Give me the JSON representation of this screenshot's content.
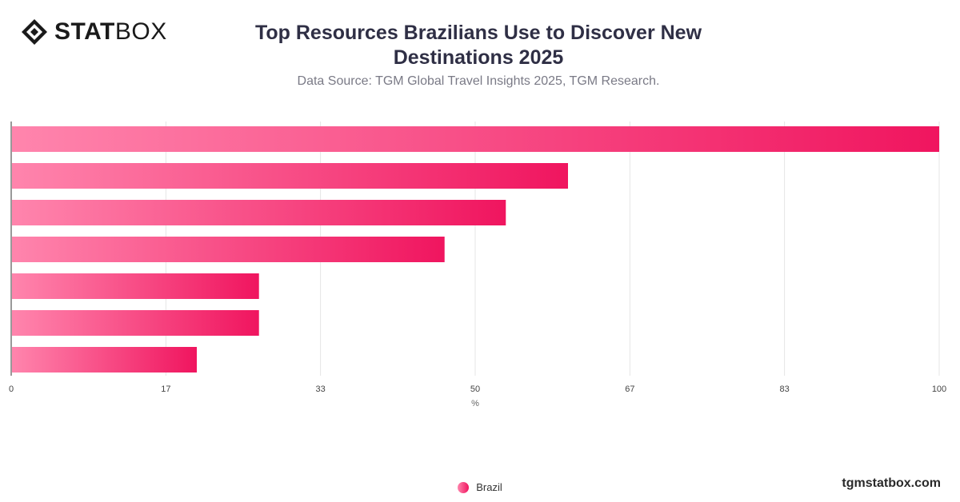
{
  "brand": {
    "bold": "STAT",
    "light": "BOX"
  },
  "watermark": "tgmstatbox.com",
  "colors": {
    "bar_start": "#ff85ad",
    "bar_end": "#f0155f"
  },
  "chart_data": {
    "type": "bar",
    "orientation": "horizontal",
    "title": "Top Resources Brazilians Use to Discover New Destinations 2025",
    "subtitle": "Data Source: TGM Global Travel Insights 2025, TGM Research.",
    "categories": [
      "",
      "",
      "",
      "",
      "",
      "",
      ""
    ],
    "series": [
      {
        "name": "Brazil",
        "values": [
          100,
          60,
          53.3,
          46.7,
          26.7,
          26.7,
          20
        ]
      }
    ],
    "xlabel": "%",
    "ylabel": "",
    "xlim": [
      0,
      100
    ],
    "xticks": [
      0,
      16.67,
      33.33,
      50,
      66.67,
      83.33,
      100
    ],
    "xtick_labels": [
      "0",
      "17",
      "33",
      "50",
      "67",
      "83",
      "100"
    ],
    "grid": true,
    "legend": "bottom-center"
  }
}
